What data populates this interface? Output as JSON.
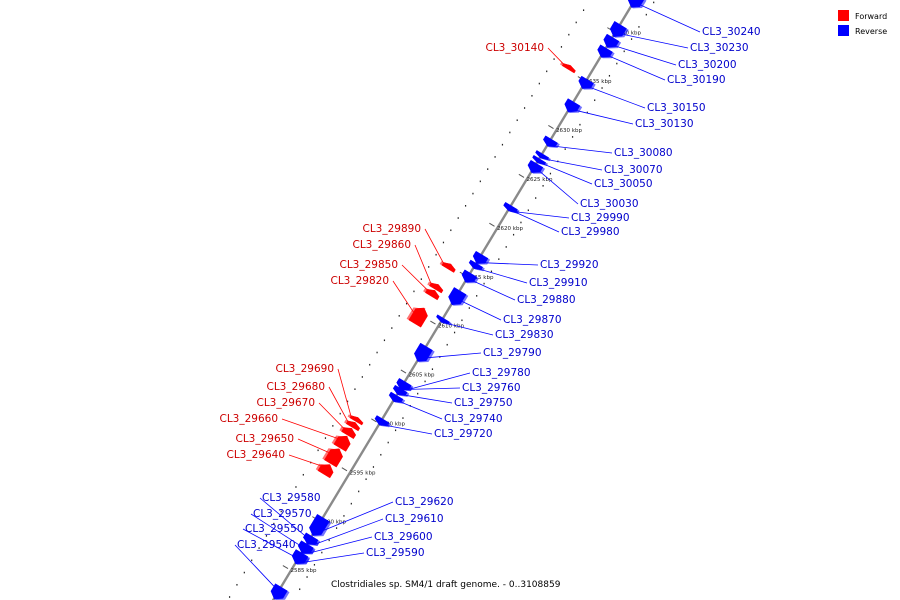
{
  "caption": "Clostridiales sp. SM4/1 draft genome. - 0..3108859",
  "legend": [
    {
      "label": "Forward",
      "color": "#ff0000"
    },
    {
      "label": "Reverse",
      "color": "#0000ff"
    }
  ],
  "colors": {
    "forward": "#ff0000",
    "reverse": "#0000ff",
    "axis": "#8a8a8a",
    "fwd_label": "#cc0000",
    "rev_label": "#0000cc"
  },
  "ticks": [
    {
      "kbp": 2585,
      "label": "2585 kbp"
    },
    {
      "kbp": 2590,
      "label": "2590 kbp"
    },
    {
      "kbp": 2595,
      "label": "2595 kbp"
    },
    {
      "kbp": 2600,
      "label": "2600 kbp"
    },
    {
      "kbp": 2605,
      "label": "2605 kbp"
    },
    {
      "kbp": 2610,
      "label": "2610 kbp"
    },
    {
      "kbp": 2615,
      "label": "2615 kbp"
    },
    {
      "kbp": 2620,
      "label": "2620 kbp"
    },
    {
      "kbp": 2625,
      "label": "2625 kbp"
    },
    {
      "kbp": 2630,
      "label": "2630 kbp"
    },
    {
      "kbp": 2635,
      "label": "2635 kbp"
    },
    {
      "kbp": 2640,
      "label": "2640 kbp"
    }
  ],
  "genes": [
    {
      "name": "CL3_29540",
      "strand": "reverse",
      "start_kbp": 2582.1,
      "end_kbp": 2583.3
    },
    {
      "name": "CL3_29550",
      "strand": "reverse",
      "start_kbp": 2585.8,
      "end_kbp": 2586.7
    },
    {
      "name": "CL3_29570",
      "strand": "reverse",
      "start_kbp": 2586.8,
      "end_kbp": 2587.7
    },
    {
      "name": "CL3_29580",
      "strand": "reverse",
      "start_kbp": 2587.8,
      "end_kbp": 2588.3
    },
    {
      "name": "CL3_29590",
      "strand": "reverse",
      "start_kbp": 2585.7,
      "end_kbp": 2586.8
    },
    {
      "name": "CL3_29600",
      "strand": "reverse",
      "start_kbp": 2586.8,
      "end_kbp": 2587.6
    },
    {
      "name": "CL3_29610",
      "strand": "reverse",
      "start_kbp": 2587.7,
      "end_kbp": 2588.5
    },
    {
      "name": "CL3_29620",
      "strand": "reverse",
      "start_kbp": 2588.6,
      "end_kbp": 2590.4
    },
    {
      "name": "CL3_29640",
      "strand": "forward",
      "start_kbp": 2593.7,
      "end_kbp": 2594.7
    },
    {
      "name": "CL3_29650",
      "strand": "forward",
      "start_kbp": 2594.8,
      "end_kbp": 2596.3
    },
    {
      "name": "CL3_29660",
      "strand": "forward",
      "start_kbp": 2596.4,
      "end_kbp": 2597.6
    },
    {
      "name": "CL3_29670",
      "strand": "forward",
      "start_kbp": 2597.7,
      "end_kbp": 2598.4
    },
    {
      "name": "CL3_29680",
      "strand": "forward",
      "start_kbp": 2598.5,
      "end_kbp": 2599.0
    },
    {
      "name": "CL3_29690",
      "strand": "forward",
      "start_kbp": 2599.1,
      "end_kbp": 2599.5
    },
    {
      "name": "CL3_29720",
      "strand": "reverse",
      "start_kbp": 2599.9,
      "end_kbp": 2600.5
    },
    {
      "name": "CL3_29740",
      "strand": "reverse",
      "start_kbp": 2602.3,
      "end_kbp": 2602.9
    },
    {
      "name": "CL3_29750",
      "strand": "reverse",
      "start_kbp": 2603.0,
      "end_kbp": 2603.6
    },
    {
      "name": "CL3_29760",
      "strand": "reverse",
      "start_kbp": 2603.6,
      "end_kbp": 2604.2
    },
    {
      "name": "CL3_29780",
      "strand": "reverse",
      "start_kbp": 2603.5,
      "end_kbp": 2604.3
    },
    {
      "name": "CL3_29790",
      "strand": "reverse",
      "start_kbp": 2606.4,
      "end_kbp": 2607.9
    },
    {
      "name": "CL3_29820",
      "strand": "forward",
      "start_kbp": 2609.1,
      "end_kbp": 2610.7
    },
    {
      "name": "CL3_29830",
      "strand": "reverse",
      "start_kbp": 2610.4,
      "end_kbp": 2610.8
    },
    {
      "name": "CL3_29850",
      "strand": "forward",
      "start_kbp": 2611.9,
      "end_kbp": 2612.5
    },
    {
      "name": "CL3_29860",
      "strand": "forward",
      "start_kbp": 2612.6,
      "end_kbp": 2613.1
    },
    {
      "name": "CL3_29870",
      "strand": "reverse",
      "start_kbp": 2612.2,
      "end_kbp": 2613.6
    },
    {
      "name": "CL3_29880",
      "strand": "reverse",
      "start_kbp": 2614.5,
      "end_kbp": 2615.4
    },
    {
      "name": "CL3_29890",
      "strand": "forward",
      "start_kbp": 2614.7,
      "end_kbp": 2615.2
    },
    {
      "name": "CL3_29910",
      "strand": "reverse",
      "start_kbp": 2615.9,
      "end_kbp": 2616.4
    },
    {
      "name": "CL3_29920",
      "strand": "reverse",
      "start_kbp": 2616.4,
      "end_kbp": 2617.3
    },
    {
      "name": "CL3_29980",
      "strand": "reverse",
      "start_kbp": 2621.8,
      "end_kbp": 2622.2
    },
    {
      "name": "CL3_29990",
      "strand": "reverse",
      "start_kbp": 2621.8,
      "end_kbp": 2622.3
    },
    {
      "name": "CL3_30030",
      "strand": "reverse",
      "start_kbp": 2625.7,
      "end_kbp": 2626.6
    },
    {
      "name": "CL3_30050",
      "strand": "reverse",
      "start_kbp": 2626.7,
      "end_kbp": 2627.1
    },
    {
      "name": "CL3_30070",
      "strand": "reverse",
      "start_kbp": 2627.2,
      "end_kbp": 2627.6
    },
    {
      "name": "CL3_30080",
      "strand": "reverse",
      "start_kbp": 2628.4,
      "end_kbp": 2629.1
    },
    {
      "name": "CL3_30130",
      "strand": "reverse",
      "start_kbp": 2631.9,
      "end_kbp": 2632.9
    },
    {
      "name": "CL3_30140",
      "strand": "forward",
      "start_kbp": 2635.1,
      "end_kbp": 2635.5
    },
    {
      "name": "CL3_30150",
      "strand": "reverse",
      "start_kbp": 2634.3,
      "end_kbp": 2635.2
    },
    {
      "name": "CL3_30190",
      "strand": "reverse",
      "start_kbp": 2637.5,
      "end_kbp": 2638.4
    },
    {
      "name": "CL3_30200",
      "strand": "reverse",
      "start_kbp": 2638.5,
      "end_kbp": 2639.5
    },
    {
      "name": "CL3_30230",
      "strand": "reverse",
      "start_kbp": 2639.6,
      "end_kbp": 2640.8
    },
    {
      "name": "CL3_30240",
      "strand": "reverse",
      "start_kbp": 2642.6,
      "end_kbp": 2643.8
    }
  ]
}
